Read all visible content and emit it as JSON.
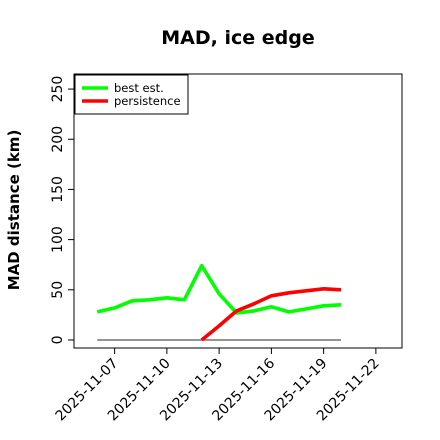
{
  "chart_data": {
    "type": "line",
    "title": "MAD, ice edge",
    "xlabel": "",
    "ylabel": "MAD distance (km)",
    "xlim": [
      "2025-11-04T16:00",
      "2025-11-23T12:00"
    ],
    "ylim": [
      -8,
      265
    ],
    "x_ticks": [
      "2025-11-07",
      "2025-11-10",
      "2025-11-13",
      "2025-11-16",
      "2025-11-19",
      "2025-11-22"
    ],
    "y_ticks": [
      0,
      50,
      100,
      150,
      200,
      250
    ],
    "grid": false,
    "legend_position": "top-left",
    "zero_line": {
      "x_start": "2025-11-06",
      "x_end": "2025-11-20",
      "y": 0,
      "color": "#555555"
    },
    "series": [
      {
        "name": "best est.",
        "color": "#00ff00",
        "x": [
          "2025-11-06",
          "2025-11-07",
          "2025-11-08",
          "2025-11-09",
          "2025-11-10",
          "2025-11-11",
          "2025-11-12",
          "2025-11-13",
          "2025-11-14",
          "2025-11-15",
          "2025-11-16",
          "2025-11-17",
          "2025-11-18",
          "2025-11-19",
          "2025-11-20"
        ],
        "values": [
          28,
          32,
          39,
          40,
          42,
          40,
          74,
          46,
          27,
          29,
          33,
          28,
          31,
          34,
          35
        ]
      },
      {
        "name": "persistence",
        "color": "#ff0000",
        "x": [
          "2025-11-12",
          "2025-11-13",
          "2025-11-14",
          "2025-11-15",
          "2025-11-16",
          "2025-11-17",
          "2025-11-18",
          "2025-11-19",
          "2025-11-20"
        ],
        "values": [
          0,
          14,
          29,
          36,
          44,
          47,
          49,
          51,
          50
        ]
      }
    ]
  }
}
